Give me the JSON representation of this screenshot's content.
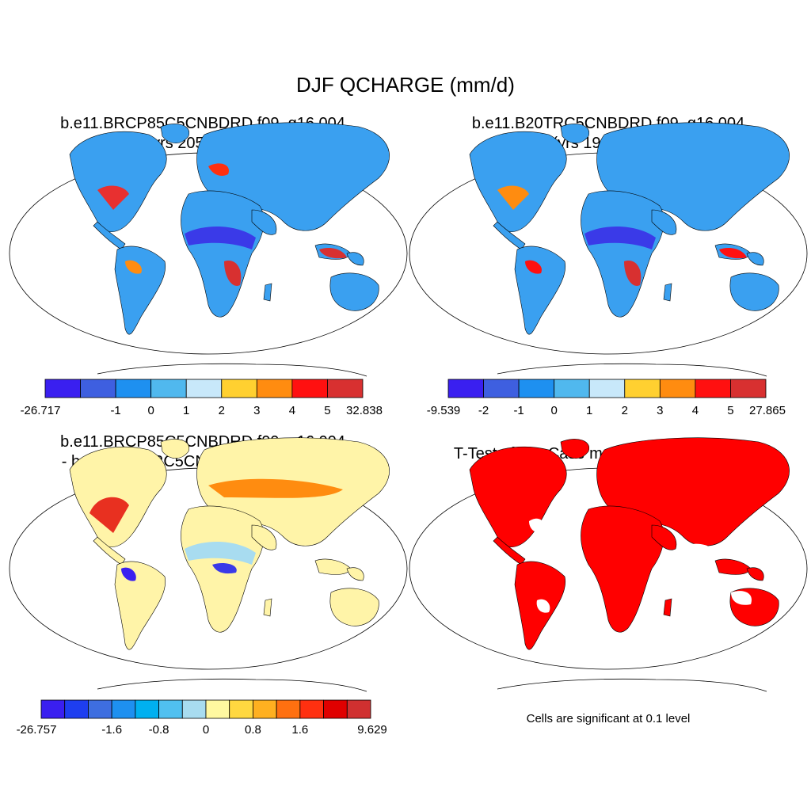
{
  "title": "DJF QCHARGE (mm/d)",
  "panels": [
    {
      "line1": "b.e11.BRCP85C5CNBDRD.f09_g16.004",
      "line2": "(yrs 2056-2080)",
      "colorbar": {
        "colors": [
          "#3a1ff0",
          "#3e5fe0",
          "#1e90f0",
          "#50b8ee",
          "#c8e8fa",
          "#ffd030",
          "#ff8c10",
          "#ff1010",
          "#d83030"
        ],
        "labels": [
          "-26.717",
          "-1",
          "0",
          "1",
          "2",
          "3",
          "4",
          "5",
          "32.838"
        ]
      }
    },
    {
      "line1": "b.e11.B20TRC5CNBDRD.f09_g16.004",
      "line2": "(yrs 1981-2005)",
      "colorbar": {
        "colors": [
          "#3a1ff0",
          "#3e5fe0",
          "#1e90f0",
          "#50b8ee",
          "#c8e8fa",
          "#ffd030",
          "#ff8c10",
          "#ff1010",
          "#d83030"
        ],
        "labels": [
          "-9.539",
          "-2",
          "-1",
          "0",
          "1",
          "2",
          "3",
          "4",
          "5",
          "27.865"
        ]
      }
    },
    {
      "line1": "b.e11.BRCP85C5CNBDRD.f09_g16.004",
      "line2": "- b.e11.B20TRC5CNBDRD.f09_g16.004",
      "colorbar": {
        "colors": [
          "#3a1ff0",
          "#1e3ef0",
          "#3e6ee0",
          "#1e90f0",
          "#00b0f0",
          "#50c0f0",
          "#a8dcf0",
          "#fff8a0",
          "#ffd840",
          "#ffb020",
          "#ff7010",
          "#ff3010",
          "#e00000",
          "#d03030"
        ],
        "labels": [
          "-26.757",
          "-1.6",
          "-0.8",
          "0",
          "0.8",
          "1.6",
          "9.629"
        ]
      }
    },
    {
      "line1": "T-Test of two Case means at each grid point",
      "note": "Cells are significant at 0.1 level"
    }
  ]
}
